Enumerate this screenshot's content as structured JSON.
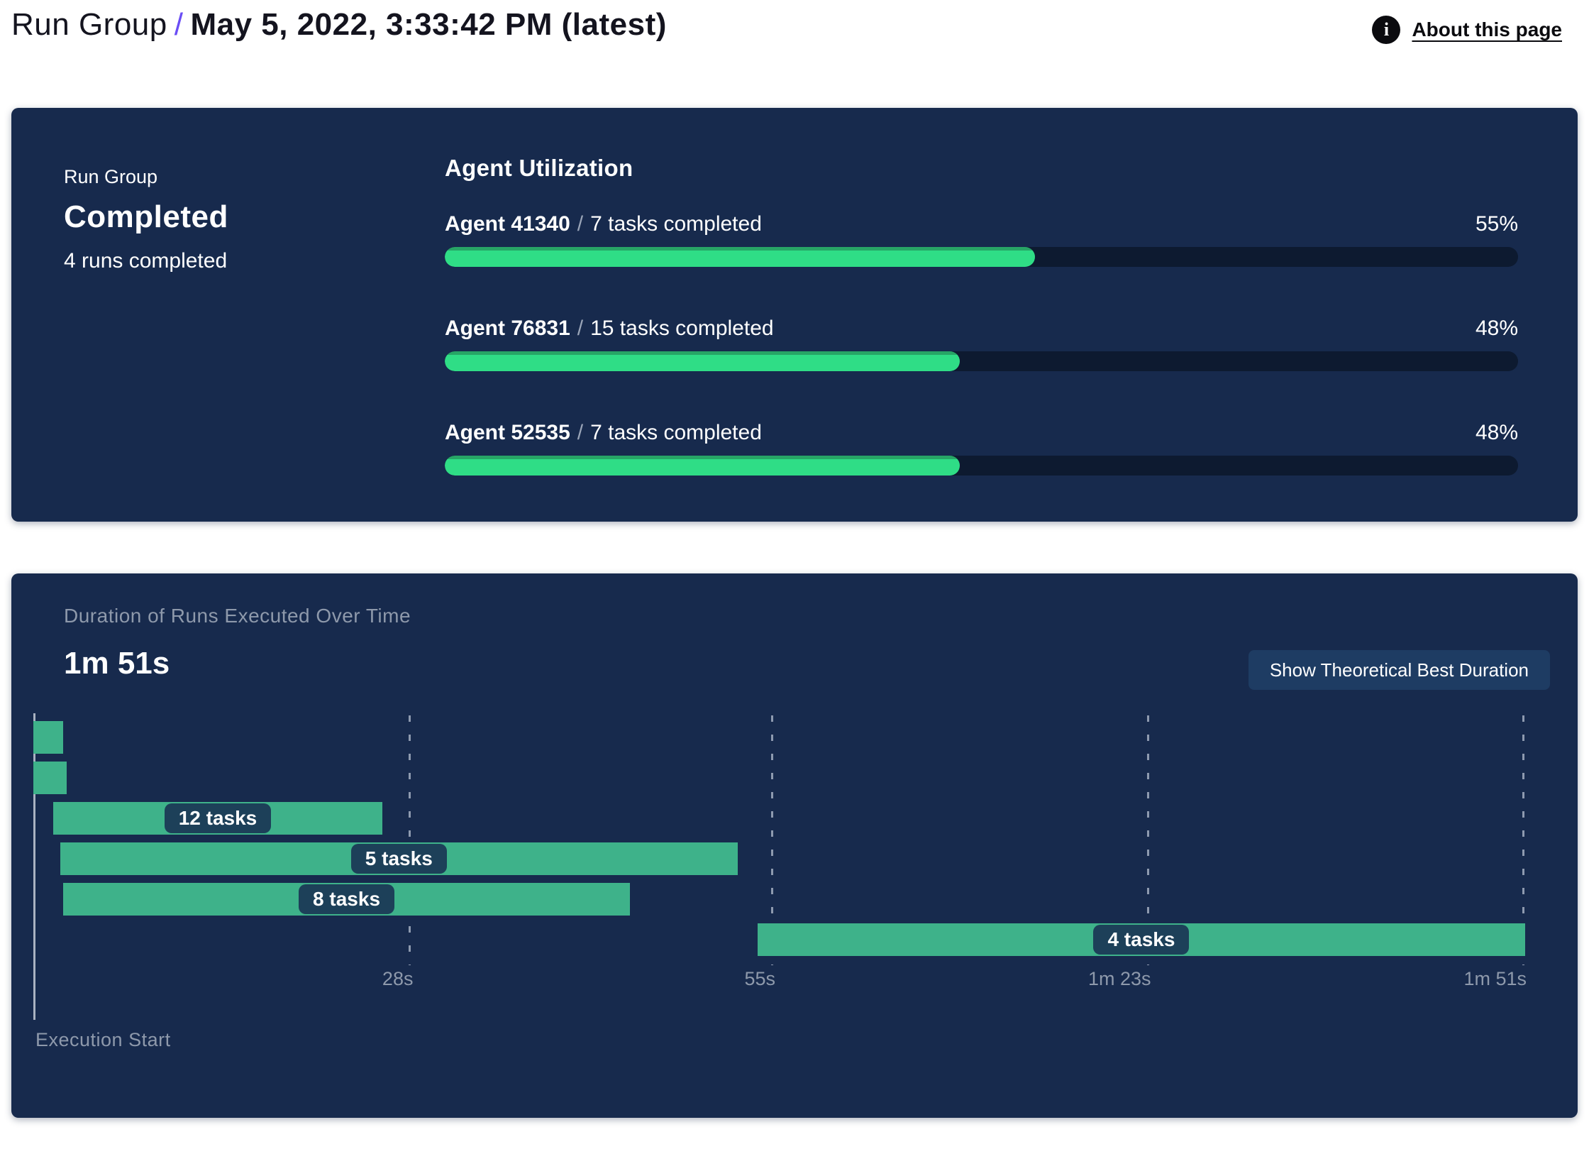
{
  "header": {
    "breadcrumb_root": "Run Group",
    "separator": "/",
    "title": "May 5, 2022, 3:33:42 PM (latest)",
    "info_icon": "i",
    "about_link": "About this page"
  },
  "summary_card": {
    "group_label": "Run Group",
    "status": "Completed",
    "runs_completed": "4 runs completed",
    "utilization": {
      "heading": "Agent Utilization",
      "agents": [
        {
          "name": "Agent 41340",
          "tasks": "7 tasks completed",
          "percent": "55%",
          "value": 55
        },
        {
          "name": "Agent 76831",
          "tasks": "15 tasks completed",
          "percent": "48%",
          "value": 48
        },
        {
          "name": "Agent 52535",
          "tasks": "7 tasks completed",
          "percent": "48%",
          "value": 48
        }
      ]
    }
  },
  "duration_card": {
    "title": "Duration of Runs Executed Over Time",
    "total_duration": "1m 51s",
    "button_label": "Show Theoretical Best Duration",
    "execution_start_label": "Execution Start"
  },
  "colors": {
    "card_background": "#172a4d",
    "progress_track": "#0d1a30",
    "progress_fill": "#2fdd86",
    "gantt_bar": "#3eb28a",
    "accent_slash": "#6a4df5",
    "muted_text": "#8e99ab"
  },
  "chart_data": {
    "type": "gantt",
    "title": "Duration of Runs Executed Over Time",
    "total_duration_label": "1m 51s",
    "x_unit": "seconds",
    "xlim": [
      0,
      111
    ],
    "grid": "dashed-vertical",
    "axis_ticks": [
      {
        "label": "28s",
        "seconds": 28
      },
      {
        "label": "55s",
        "seconds": 55
      },
      {
        "label": "1m 23s",
        "seconds": 83
      },
      {
        "label": "1m 51s",
        "seconds": 111
      }
    ],
    "bars": [
      {
        "row": 0,
        "start": 0,
        "end": 2.2,
        "label": null,
        "tasks": null
      },
      {
        "row": 1,
        "start": 0,
        "end": 2.5,
        "label": null,
        "tasks": null
      },
      {
        "row": 2,
        "start": 1.5,
        "end": 26,
        "label": "12 tasks",
        "tasks": 12
      },
      {
        "row": 3,
        "start": 2,
        "end": 52.5,
        "label": "5 tasks",
        "tasks": 5
      },
      {
        "row": 4,
        "start": 2.2,
        "end": 44.5,
        "label": "8 tasks",
        "tasks": 8
      },
      {
        "row": 5,
        "start": 54,
        "end": 111.2,
        "label": "4 tasks",
        "tasks": 4
      }
    ]
  }
}
